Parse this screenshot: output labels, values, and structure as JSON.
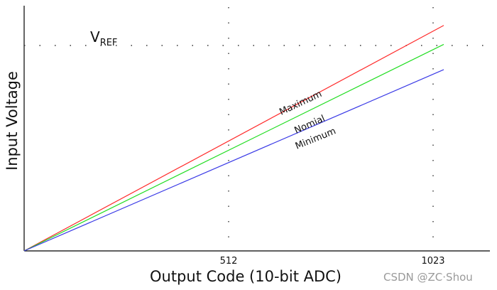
{
  "chart_data": {
    "type": "line",
    "xlabel": "Output Code (10-bit ADC)",
    "ylabel": "Input Voltage",
    "xlim": [
      0,
      1100
    ],
    "ylim": [
      0,
      1.1
    ],
    "x_ticks": [
      512,
      1023
    ],
    "reference_line": {
      "label_main": "V",
      "label_sub": "REF",
      "y": 1.0
    },
    "grid": "dotted at x=512, x=1023 and y=VREF",
    "series": [
      {
        "name": "Maximum",
        "color": "#ff2a2a",
        "x": [
          0,
          1023
        ],
        "y": [
          0,
          1.07
        ]
      },
      {
        "name": "Nomial",
        "color": "#22dd22",
        "x": [
          0,
          1023
        ],
        "y": [
          0,
          0.98
        ]
      },
      {
        "name": "Minimum",
        "color": "#3a3ae6",
        "x": [
          0,
          1023
        ],
        "y": [
          0,
          0.86
        ]
      }
    ]
  },
  "watermark": "CSDN @ZC·Shou"
}
